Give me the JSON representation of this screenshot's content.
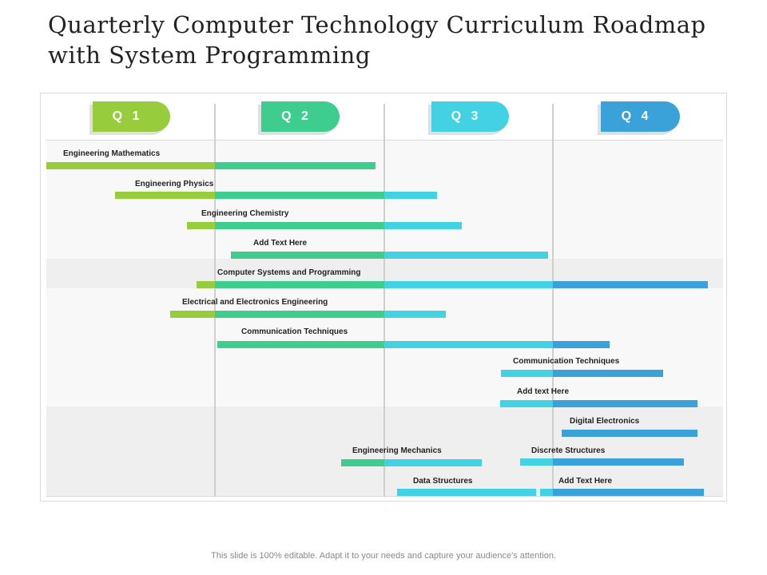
{
  "title": "Quarterly Computer Technology Curriculum Roadmap with System Programming",
  "footer": "This slide is 100% editable. Adapt it to your needs and capture your audience's attention.",
  "colors": {
    "q1": "#97cc3c",
    "q2": "#3fcc8f",
    "q3": "#42d2e3",
    "q4": "#3aa2d8",
    "band_light": "#f7f7f7",
    "band_dark": "#efefef"
  },
  "quarters": [
    {
      "label": "Q 1",
      "color": "#97cc3c"
    },
    {
      "label": "Q 2",
      "color": "#3fcc8f"
    },
    {
      "label": "Q 3",
      "color": "#42d2e3"
    },
    {
      "label": "Q 4",
      "color": "#3aa2d8"
    }
  ],
  "tasks": [
    {
      "label": "Engineering Mathematics"
    },
    {
      "label": "Engineering Physics"
    },
    {
      "label": "Engineering Chemistry"
    },
    {
      "label": "Add Text Here"
    },
    {
      "label": "Computer Systems and Programming"
    },
    {
      "label": "Electrical and Electronics Engineering"
    },
    {
      "label": "Communication Techniques"
    },
    {
      "label": "Communication Techniques"
    },
    {
      "label": "Add text Here"
    },
    {
      "label": "Digital Electronics"
    },
    {
      "label": "Engineering Mechanics"
    },
    {
      "label": "Discrete Structures"
    },
    {
      "label": "Data Structures"
    },
    {
      "label": "Add Text Here"
    }
  ]
}
